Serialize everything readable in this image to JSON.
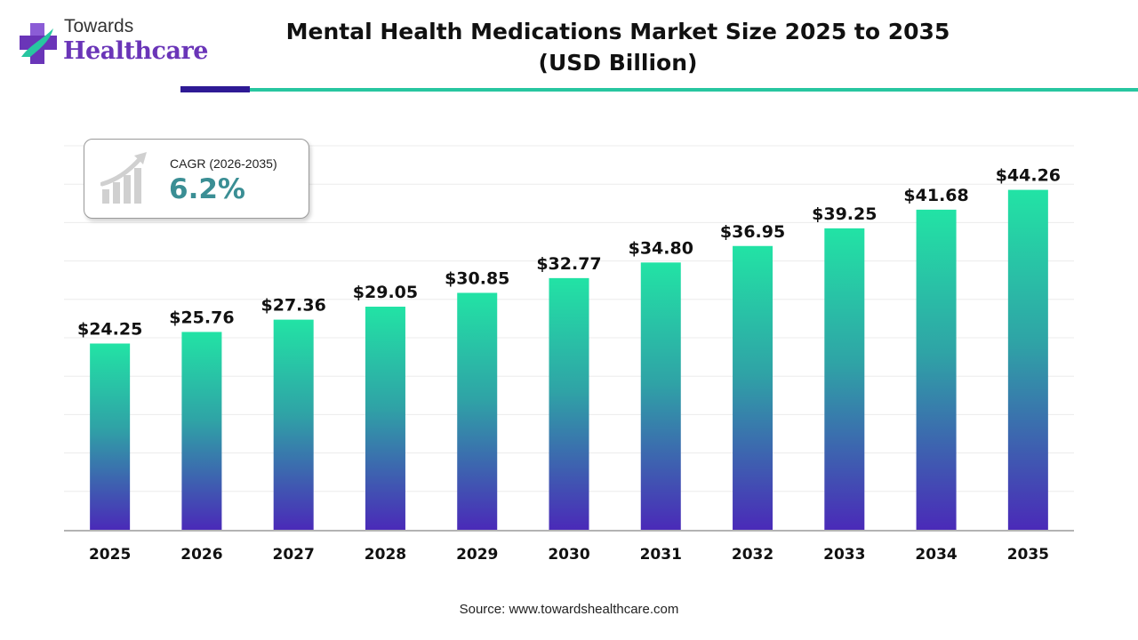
{
  "header": {
    "logo_line1": "Towards",
    "logo_line2": "Healthcare",
    "title_line1": "Mental Health Medications Market Size 2025 to 2035",
    "title_line2": "(USD Billion)"
  },
  "cagr": {
    "label": "CAGR (2026-2035)",
    "value": "6.2%",
    "icon": "growth-chart-icon"
  },
  "colors": {
    "brand_purple": "#6a35b8",
    "brand_teal": "#27c6a0",
    "bar_top": "#22e3a5",
    "bar_bottom": "#4a2ab8",
    "cagr_value": "#3a8e94"
  },
  "chart_data": {
    "type": "bar",
    "title": "Mental Health Medications Market Size 2025 to 2035 (USD Billion)",
    "xlabel": "",
    "ylabel": "",
    "categories": [
      "2025",
      "2026",
      "2027",
      "2028",
      "2029",
      "2030",
      "2031",
      "2032",
      "2033",
      "2034",
      "2035"
    ],
    "values": [
      24.25,
      25.76,
      27.36,
      29.05,
      30.85,
      32.77,
      34.8,
      36.95,
      39.25,
      41.68,
      44.26
    ],
    "value_labels": [
      "$24.25",
      "$25.76",
      "$27.36",
      "$29.05",
      "$30.85",
      "$32.77",
      "$34.80",
      "$36.95",
      "$39.25",
      "$41.68",
      "$44.26"
    ],
    "ylim": [
      0,
      50
    ],
    "grid": true,
    "legend": "none"
  },
  "footer": {
    "source": "Source: www.towardshealthcare.com"
  }
}
